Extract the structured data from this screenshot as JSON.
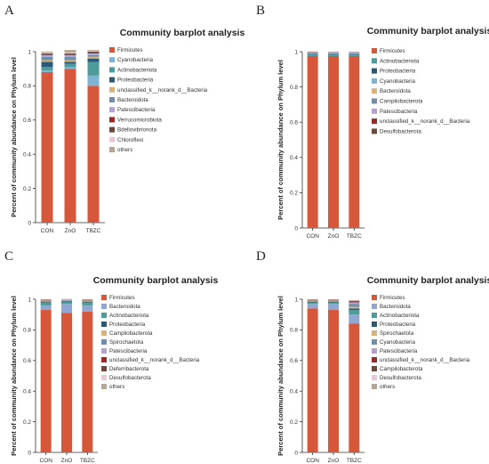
{
  "chart_data": [
    {
      "panel": "A",
      "type": "bar",
      "stacked": true,
      "title": "Community barplot analysis",
      "ylabel": "Percent of community abundance on Phylum level",
      "ylim": [
        0,
        1
      ],
      "yticks": [
        "0",
        "0.2",
        "0.4",
        "0.6",
        "0.8",
        "1"
      ],
      "categories": [
        "CON",
        "ZnO",
        "TBZC"
      ],
      "legend_position": "right",
      "series": [
        {
          "name": "Firmicutes",
          "color": "#d7573b",
          "values": [
            0.88,
            0.9,
            0.8
          ]
        },
        {
          "name": "Cyanobacteria",
          "color": "#7fb3d5",
          "values": [
            0.01,
            0.01,
            0.06
          ]
        },
        {
          "name": "Actinobacteriota",
          "color": "#4f9a9a",
          "values": [
            0.02,
            0.02,
            0.08
          ]
        },
        {
          "name": "Proteobacteria",
          "color": "#2a5a78",
          "values": [
            0.03,
            0.01,
            0.02
          ]
        },
        {
          "name": "unclassified_k__norank_d__Bacteria",
          "color": "#d8b27a",
          "values": [
            0.01,
            0.01,
            0.01
          ]
        },
        {
          "name": "Bacteroidota",
          "color": "#6f8fa8",
          "values": [
            0.02,
            0.02,
            0.01
          ]
        },
        {
          "name": "Patescibacteria",
          "color": "#b3a2d1",
          "values": [
            0.01,
            0.01,
            0.01
          ]
        },
        {
          "name": "Verrucomicrobiota",
          "color": "#9a2a2a",
          "values": [
            0.005,
            0.005,
            0.005
          ]
        },
        {
          "name": "Bdellovibrionota",
          "color": "#6b4a3a",
          "values": [
            0.005,
            0.005,
            0.005
          ]
        },
        {
          "name": "Chloroflexi",
          "color": "#e8c9d8",
          "values": [
            0.005,
            0.005,
            0.005
          ]
        },
        {
          "name": "others",
          "color": "#b8a596",
          "values": [
            0.005,
            0.015,
            0.005
          ]
        }
      ]
    },
    {
      "panel": "B",
      "type": "bar",
      "stacked": true,
      "title": "Community barplot analysis",
      "ylabel": "Percent of community abundance on Phylum level",
      "ylim": [
        0,
        1
      ],
      "yticks": [
        "0",
        "0.2",
        "0.4",
        "0.6",
        "0.8",
        "1"
      ],
      "categories": [
        "CON",
        "ZnO",
        "TBZC"
      ],
      "legend_position": "right",
      "series": [
        {
          "name": "Firmicutes",
          "color": "#d7573b",
          "values": [
            0.975,
            0.975,
            0.975
          ]
        },
        {
          "name": "Actinobacteriota",
          "color": "#4f9a9a",
          "values": [
            0.008,
            0.01,
            0.01
          ]
        },
        {
          "name": "Proteobacteria",
          "color": "#2a5a78",
          "values": [
            0.004,
            0.003,
            0.003
          ]
        },
        {
          "name": "Cyanobacteria",
          "color": "#7fb3d5",
          "values": [
            0.003,
            0.003,
            0.003
          ]
        },
        {
          "name": "Bacteroidota",
          "color": "#d8b27a",
          "values": [
            0.003,
            0.003,
            0.003
          ]
        },
        {
          "name": "Campilobacterota",
          "color": "#6f8fa8",
          "values": [
            0.002,
            0.002,
            0.002
          ]
        },
        {
          "name": "Patescibacteria",
          "color": "#b3a2d1",
          "values": [
            0.002,
            0.002,
            0.002
          ]
        },
        {
          "name": "unclassified_k__norank_d__Bacteria",
          "color": "#9a2a2a",
          "values": [
            0.002,
            0.001,
            0.001
          ]
        },
        {
          "name": "Desulfobacterota",
          "color": "#6b4a3a",
          "values": [
            0.001,
            0.001,
            0.001
          ]
        }
      ]
    },
    {
      "panel": "C",
      "type": "bar",
      "stacked": true,
      "title": "Community barplot analysis",
      "ylabel": "Percent of community abundance on Phylum level",
      "ylim": [
        0,
        1
      ],
      "yticks": [
        "0",
        "0.2",
        "0.4",
        "0.6",
        "0.8",
        "1"
      ],
      "categories": [
        "CON",
        "ZnO",
        "TBZC"
      ],
      "legend_position": "right",
      "series": [
        {
          "name": "Firmicutes",
          "color": "#d7573b",
          "values": [
            0.93,
            0.91,
            0.92
          ]
        },
        {
          "name": "Bacteroidota",
          "color": "#8fa7d1",
          "values": [
            0.03,
            0.06,
            0.04
          ]
        },
        {
          "name": "Actinobacteriota",
          "color": "#4f9a9a",
          "values": [
            0.02,
            0.015,
            0.02
          ]
        },
        {
          "name": "Proteobacteria",
          "color": "#2a5a78",
          "values": [
            0.005,
            0.005,
            0.005
          ]
        },
        {
          "name": "Campilobacterota",
          "color": "#d8b27a",
          "values": [
            0.003,
            0.003,
            0.003
          ]
        },
        {
          "name": "Spirochaetota",
          "color": "#6f8fa8",
          "values": [
            0.003,
            0.002,
            0.003
          ]
        },
        {
          "name": "Patescibacteria",
          "color": "#b3a2d1",
          "values": [
            0.003,
            0.002,
            0.003
          ]
        },
        {
          "name": "unclassified_k__norank_d__Bacteria",
          "color": "#9a2a2a",
          "values": [
            0.002,
            0.001,
            0.002
          ]
        },
        {
          "name": "Deferribacterota",
          "color": "#6b4a3a",
          "values": [
            0.001,
            0.001,
            0.001
          ]
        },
        {
          "name": "Desulfobacterota",
          "color": "#e8c9d8",
          "values": [
            0.001,
            0.001,
            0.001
          ]
        },
        {
          "name": "others",
          "color": "#b8a596",
          "values": [
            0.002,
            0.002,
            0.002
          ]
        }
      ]
    },
    {
      "panel": "D",
      "type": "bar",
      "stacked": true,
      "title": "Community barplot analysis",
      "ylabel": "Percent of community abundance on Phylum level",
      "ylim": [
        0,
        1
      ],
      "yticks": [
        "0",
        "0.2",
        "0.4",
        "0.6",
        "0.8",
        "1"
      ],
      "categories": [
        "CON",
        "ZnO",
        "TBZC"
      ],
      "legend_position": "right",
      "series": [
        {
          "name": "Firmicutes",
          "color": "#d7573b",
          "values": [
            0.94,
            0.93,
            0.84
          ]
        },
        {
          "name": "Bacteroidota",
          "color": "#8fa7d1",
          "values": [
            0.03,
            0.04,
            0.06
          ]
        },
        {
          "name": "Actinobacteriota",
          "color": "#4f9a9a",
          "values": [
            0.01,
            0.01,
            0.03
          ]
        },
        {
          "name": "Proteobacteria",
          "color": "#2a5a78",
          "values": [
            0.005,
            0.005,
            0.01
          ]
        },
        {
          "name": "Spirochaetota",
          "color": "#d8b27a",
          "values": [
            0.003,
            0.003,
            0.01
          ]
        },
        {
          "name": "Cyanobacteria",
          "color": "#6f8fa8",
          "values": [
            0.003,
            0.003,
            0.02
          ]
        },
        {
          "name": "Patescibacteria",
          "color": "#b3a2d1",
          "values": [
            0.003,
            0.003,
            0.01
          ]
        },
        {
          "name": "unclassified_k__norank_d__Bacteria",
          "color": "#9a2a2a",
          "values": [
            0.002,
            0.002,
            0.005
          ]
        },
        {
          "name": "Campilobacterota",
          "color": "#6b4a3a",
          "values": [
            0.002,
            0.002,
            0.005
          ]
        },
        {
          "name": "Desulfobacterota",
          "color": "#e8c9d8",
          "values": [
            0.001,
            0.001,
            0.003
          ]
        },
        {
          "name": "others",
          "color": "#b8a596",
          "values": [
            0.001,
            0.001,
            0.002
          ]
        }
      ]
    }
  ]
}
